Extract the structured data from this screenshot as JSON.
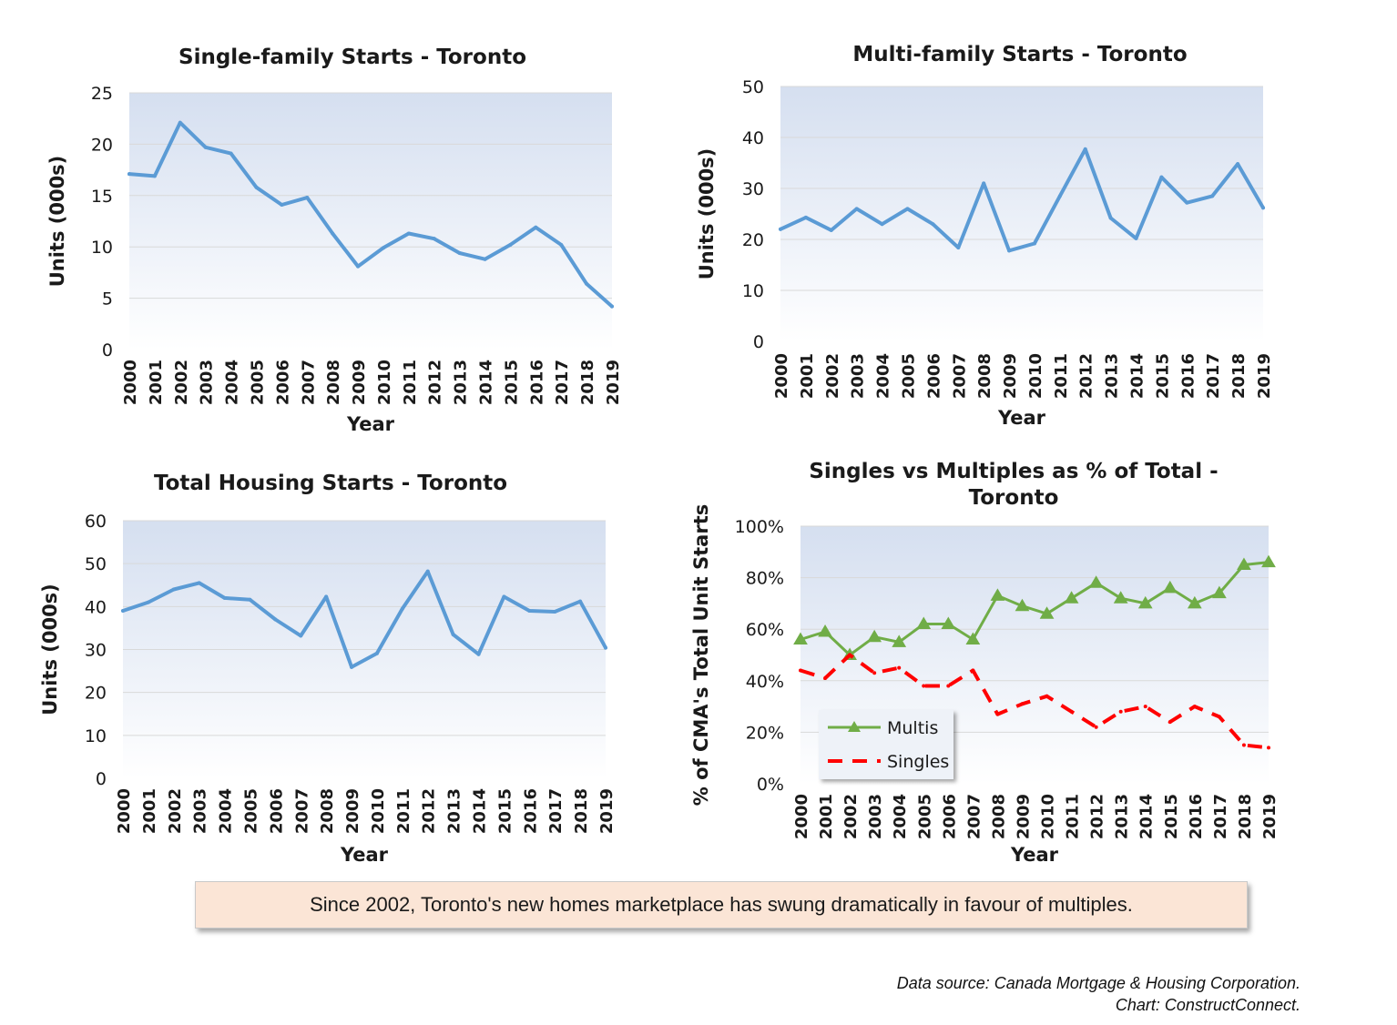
{
  "chart_data": [
    {
      "type": "line",
      "title": "Single-family Starts - Toronto",
      "xlabel": "Year",
      "ylabel": "Units (000s)",
      "ylim": [
        0,
        25
      ],
      "yticks": [
        "0",
        "5",
        "10",
        "15",
        "20",
        "25"
      ],
      "categories": [
        "2000",
        "2001",
        "2002",
        "2003",
        "2004",
        "2005",
        "2006",
        "2007",
        "2008",
        "2009",
        "2010",
        "2011",
        "2012",
        "2013",
        "2014",
        "2015",
        "2016",
        "2017",
        "2018",
        "2019"
      ],
      "series": [
        {
          "values": [
            17.1,
            16.9,
            22.1,
            19.7,
            19.1,
            15.8,
            14.1,
            14.8,
            11.3,
            8.1,
            9.9,
            11.3,
            10.8,
            9.4,
            8.8,
            10.2,
            11.9,
            10.2,
            6.4,
            4.2
          ],
          "color": "#5b9bd5"
        }
      ]
    },
    {
      "type": "line",
      "title": "Multi-family Starts - Toronto",
      "xlabel": "Year",
      "ylabel": "Units (000s)",
      "ylim": [
        0,
        50
      ],
      "yticks": [
        "0",
        "10",
        "20",
        "30",
        "40",
        "50"
      ],
      "categories": [
        "2000",
        "2001",
        "2002",
        "2003",
        "2004",
        "2005",
        "2006",
        "2007",
        "2008",
        "2009",
        "2010",
        "2011",
        "2012",
        "2013",
        "2014",
        "2015",
        "2016",
        "2017",
        "2018",
        "2019"
      ],
      "series": [
        {
          "values": [
            22,
            24.3,
            21.8,
            26,
            23,
            26,
            23,
            18.4,
            31,
            17.8,
            19.2,
            28.5,
            37.7,
            24.2,
            20.2,
            32.2,
            27.2,
            28.5,
            34.8,
            26.2
          ],
          "color": "#5b9bd5"
        }
      ]
    },
    {
      "type": "line",
      "title": "Total Housing Starts - Toronto",
      "xlabel": "Year",
      "ylabel": "Units (000s)",
      "ylim": [
        0,
        60
      ],
      "yticks": [
        "0",
        "10",
        "20",
        "30",
        "40",
        "50",
        "60"
      ],
      "categories": [
        "2000",
        "2001",
        "2002",
        "2003",
        "2004",
        "2005",
        "2006",
        "2007",
        "2008",
        "2009",
        "2010",
        "2011",
        "2012",
        "2013",
        "2014",
        "2015",
        "2016",
        "2017",
        "2018",
        "2019"
      ],
      "series": [
        {
          "values": [
            39,
            41,
            44,
            45.5,
            42,
            41.6,
            37,
            33.2,
            42.3,
            25.9,
            29.1,
            39.5,
            48.2,
            33.5,
            28.9,
            42.3,
            39,
            38.8,
            41.2,
            30.4
          ],
          "color": "#5b9bd5"
        }
      ]
    },
    {
      "type": "line",
      "title": "Singles vs Multiples as % of Total - Toronto",
      "title_lines": [
        "Singles vs Multiples as % of Total -",
        "Toronto"
      ],
      "xlabel": "Year",
      "ylabel": "% of CMA's Total Unit Starts",
      "ylim": [
        0,
        100
      ],
      "yticks": [
        "0%",
        "20%",
        "40%",
        "60%",
        "80%",
        "100%"
      ],
      "legend_position": "bottom-left",
      "categories": [
        "2000",
        "2001",
        "2002",
        "2003",
        "2004",
        "2005",
        "2006",
        "2007",
        "2008",
        "2009",
        "2010",
        "2011",
        "2012",
        "2013",
        "2014",
        "2015",
        "2016",
        "2017",
        "2018",
        "2019"
      ],
      "series": [
        {
          "name": "Multis",
          "values": [
            56,
            59,
            50,
            57,
            55,
            62,
            62,
            56,
            73,
            69,
            66,
            72,
            78,
            72,
            70,
            76,
            70,
            74,
            85,
            86
          ],
          "color": "#70ad47"
        },
        {
          "name": "Singles",
          "values": [
            44,
            41,
            50,
            43,
            45,
            38,
            38,
            44,
            27,
            31,
            34,
            28,
            22,
            28,
            30,
            24,
            30,
            26,
            15,
            14
          ],
          "color": "#ff0000"
        }
      ]
    }
  ],
  "caption": "Since 2002, Toronto's new homes marketplace has swung dramatically in favour of multiples.",
  "source_line1": "Data source: Canada Mortgage & Housing Corporation.",
  "source_line2": "Chart: ConstructConnect."
}
